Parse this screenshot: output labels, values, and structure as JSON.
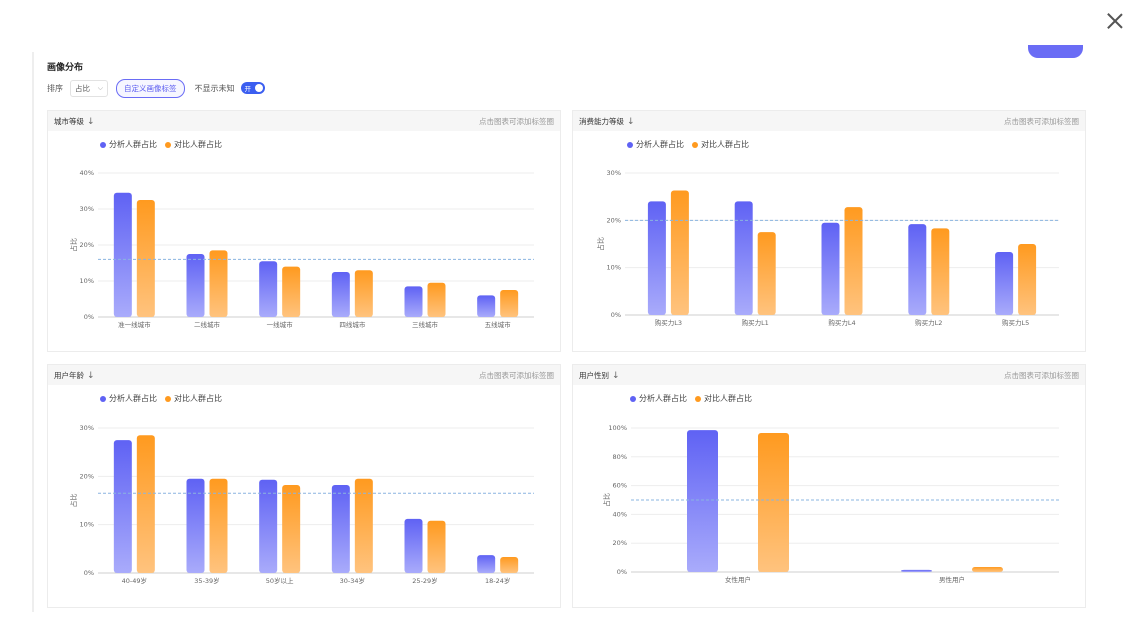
{
  "page": {
    "title": "画像分布",
    "sort_label": "排序",
    "sort_value": "占比",
    "custom_tag_button": "自定义画像标签",
    "hide_unknown_label": "不显示未知",
    "toggle_text": "开"
  },
  "colors": {
    "analysis": "#5f62f4",
    "compare": "#ff9a1f",
    "avgline": "#8ab4e0"
  },
  "panels": [
    {
      "title": "城市等级",
      "hint": "点击图表可添加标签圈",
      "legend": [
        "分析人群占比",
        "对比人群占比"
      ]
    },
    {
      "title": "消费能力等级",
      "hint": "点击图表可添加标签圈",
      "legend": [
        "分析人群占比",
        "对比人群占比"
      ]
    },
    {
      "title": "用户年龄",
      "hint": "点击图表可添加标签圈",
      "legend": [
        "分析人群占比",
        "对比人群占比"
      ]
    },
    {
      "title": "用户性别",
      "hint": "点击图表可添加标签圈",
      "legend": [
        "分析人群占比",
        "对比人群占比"
      ]
    }
  ],
  "chart_data": [
    {
      "type": "bar",
      "ylabel": "占比",
      "yticks": [
        "0%",
        "10%",
        "20%",
        "30%",
        "40%"
      ],
      "ylim": [
        0,
        40
      ],
      "avg": 16,
      "categories": [
        "准一线城市",
        "二线城市",
        "一线城市",
        "四线城市",
        "三线城市",
        "五线城市"
      ],
      "series": [
        {
          "name": "分析人群占比",
          "values": [
            34.5,
            17.5,
            15.5,
            12.5,
            8.5,
            6
          ]
        },
        {
          "name": "对比人群占比",
          "values": [
            32.5,
            18.5,
            14,
            13,
            9.5,
            7.5
          ]
        }
      ]
    },
    {
      "type": "bar",
      "ylabel": "占比",
      "yticks": [
        "0%",
        "10%",
        "20%",
        "30%"
      ],
      "ylim": [
        0,
        30
      ],
      "avg": 20,
      "categories": [
        "购买力L3",
        "购买力L1",
        "购买力L4",
        "购买力L2",
        "购买力L5"
      ],
      "series": [
        {
          "name": "分析人群占比",
          "values": [
            24,
            24,
            19.5,
            19.2,
            13.3
          ]
        },
        {
          "name": "对比人群占比",
          "values": [
            26.3,
            17.5,
            22.8,
            18.3,
            15
          ]
        }
      ]
    },
    {
      "type": "bar",
      "ylabel": "占比",
      "yticks": [
        "0%",
        "10%",
        "20%",
        "30%"
      ],
      "ylim": [
        0,
        30
      ],
      "avg": 16.5,
      "categories": [
        "40-49岁",
        "35-39岁",
        "50岁以上",
        "30-34岁",
        "25-29岁",
        "18-24岁"
      ],
      "series": [
        {
          "name": "分析人群占比",
          "values": [
            27.5,
            19.5,
            19.3,
            18.2,
            11.2,
            3.7
          ]
        },
        {
          "name": "对比人群占比",
          "values": [
            28.5,
            19.5,
            18.2,
            19.5,
            10.8,
            3.3
          ]
        }
      ]
    },
    {
      "type": "bar",
      "ylabel": "占比",
      "yticks": [
        "0%",
        "20%",
        "40%",
        "60%",
        "80%",
        "100%"
      ],
      "ylim": [
        0,
        100
      ],
      "avg": 50,
      "categories": [
        "女性用户",
        "男性用户"
      ],
      "series": [
        {
          "name": "分析人群占比",
          "values": [
            98.5,
            1.5
          ]
        },
        {
          "name": "对比人群占比",
          "values": [
            96.5,
            3.5
          ]
        }
      ]
    }
  ]
}
